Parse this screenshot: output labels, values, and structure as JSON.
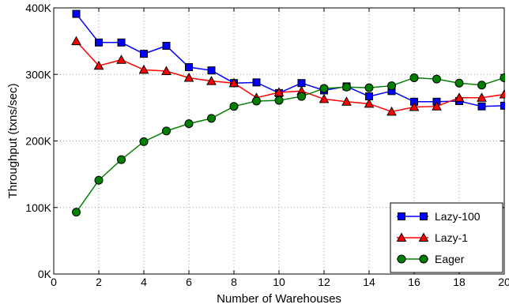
{
  "chart_data": {
    "type": "line",
    "xlabel": "Number of Warehouses",
    "ylabel": "Throughput (txns/sec)",
    "xlim": [
      0,
      20
    ],
    "ylim": [
      0,
      400000
    ],
    "xticks": [
      0,
      2,
      4,
      6,
      8,
      10,
      12,
      14,
      16,
      18,
      20
    ],
    "xtick_labels": [
      "0",
      "2",
      "4",
      "6",
      "8",
      "10",
      "12",
      "14",
      "16",
      "18",
      "20"
    ],
    "yticks": [
      0,
      100000,
      200000,
      300000,
      400000
    ],
    "ytick_labels": [
      "0K",
      "100K",
      "200K",
      "300K",
      "400K"
    ],
    "grid": true,
    "legend_position": "bottom-right",
    "x": [
      1,
      2,
      3,
      4,
      5,
      6,
      7,
      8,
      9,
      10,
      11,
      12,
      13,
      14,
      15,
      16,
      17,
      18,
      19,
      20
    ],
    "series": [
      {
        "name": "Lazy-100",
        "color": "#0000ff",
        "marker": "square",
        "values": [
          391000,
          348000,
          348000,
          331000,
          343000,
          311000,
          306000,
          287000,
          288000,
          272000,
          287000,
          276000,
          282000,
          267000,
          275000,
          259000,
          259000,
          260000,
          252000,
          253000
        ]
      },
      {
        "name": "Lazy-1",
        "color": "#ff0000",
        "marker": "triangle",
        "values": [
          350000,
          313000,
          322000,
          307000,
          305000,
          295000,
          290000,
          287000,
          265000,
          273000,
          275000,
          263000,
          259000,
          256000,
          244000,
          251000,
          252000,
          265000,
          265000,
          270000
        ]
      },
      {
        "name": "Eager",
        "color": "#008000",
        "marker": "circle",
        "values": [
          93000,
          141000,
          172000,
          199000,
          215000,
          226000,
          234000,
          252000,
          260000,
          261000,
          267000,
          279000,
          281000,
          280000,
          283000,
          295000,
          293000,
          287000,
          284000,
          295000
        ]
      }
    ]
  }
}
